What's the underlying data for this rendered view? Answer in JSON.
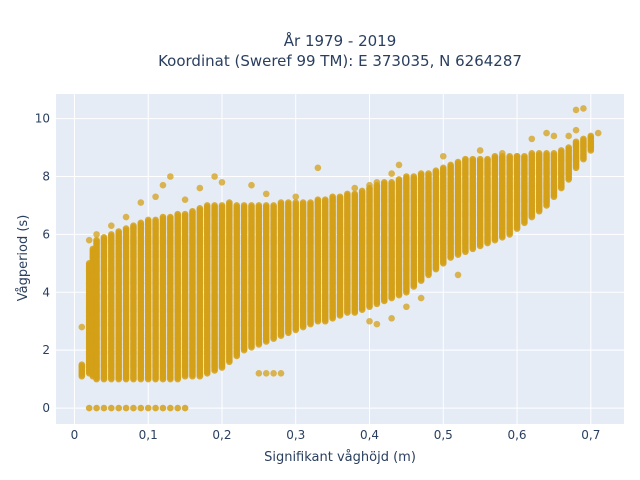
{
  "chart_data": {
    "type": "scatter",
    "title_line1": "År 1979 - 2019",
    "title_line2": "Koordinat (Sweref 99 TM): E 373035, N 6264287",
    "xlabel": "Signifikant våghöjd (m)",
    "ylabel": "Vågperiod (s)",
    "xlim": [
      -0.025,
      0.745
    ],
    "ylim": [
      -0.55,
      10.85
    ],
    "xticks": [
      0,
      0.1,
      0.2,
      0.3,
      0.4,
      0.5,
      0.6,
      0.7
    ],
    "xtick_labels": [
      "0",
      "0,1",
      "0,2",
      "0,3",
      "0,4",
      "0,5",
      "0,6",
      "0,7"
    ],
    "yticks": [
      0,
      2,
      4,
      6,
      8,
      10
    ],
    "ytick_labels": [
      "0",
      "2",
      "4",
      "6",
      "8",
      "10"
    ],
    "grid": true,
    "colors": {
      "marker": "#D4A017",
      "plot_bg": "#E5ECF6",
      "grid": "#ffffff",
      "text": "#2a3f5f"
    },
    "series": [
      {
        "bands": [
          [
            0.01,
            1.1,
            1.5
          ],
          [
            0.02,
            1.2,
            5.0
          ],
          [
            0.025,
            1.1,
            5.5
          ],
          [
            0.03,
            1.0,
            5.8
          ],
          [
            0.04,
            1.0,
            5.9
          ],
          [
            0.05,
            1.0,
            6.0
          ],
          [
            0.06,
            1.0,
            6.1
          ],
          [
            0.07,
            1.0,
            6.2
          ],
          [
            0.08,
            1.0,
            6.3
          ],
          [
            0.09,
            1.0,
            6.4
          ],
          [
            0.1,
            1.0,
            6.5
          ],
          [
            0.11,
            1.0,
            6.5
          ],
          [
            0.12,
            1.0,
            6.6
          ],
          [
            0.13,
            1.0,
            6.6
          ],
          [
            0.14,
            1.0,
            6.7
          ],
          [
            0.15,
            1.1,
            6.7
          ],
          [
            0.16,
            1.1,
            6.8
          ],
          [
            0.17,
            1.1,
            6.9
          ],
          [
            0.18,
            1.2,
            7.0
          ],
          [
            0.19,
            1.3,
            7.0
          ],
          [
            0.2,
            1.4,
            7.0
          ],
          [
            0.21,
            1.6,
            7.1
          ],
          [
            0.22,
            1.8,
            7.0
          ],
          [
            0.23,
            2.0,
            7.0
          ],
          [
            0.24,
            2.1,
            7.0
          ],
          [
            0.25,
            2.2,
            7.0
          ],
          [
            0.26,
            2.3,
            7.0
          ],
          [
            0.27,
            2.4,
            7.0
          ],
          [
            0.28,
            2.5,
            7.1
          ],
          [
            0.29,
            2.6,
            7.1
          ],
          [
            0.3,
            2.7,
            7.1
          ],
          [
            0.31,
            2.8,
            7.1
          ],
          [
            0.32,
            2.9,
            7.1
          ],
          [
            0.33,
            3.0,
            7.2
          ],
          [
            0.34,
            3.0,
            7.2
          ],
          [
            0.35,
            3.1,
            7.3
          ],
          [
            0.36,
            3.2,
            7.3
          ],
          [
            0.37,
            3.3,
            7.4
          ],
          [
            0.38,
            3.3,
            7.4
          ],
          [
            0.39,
            3.4,
            7.5
          ],
          [
            0.4,
            3.5,
            7.6
          ],
          [
            0.41,
            3.6,
            7.7
          ],
          [
            0.42,
            3.7,
            7.8
          ],
          [
            0.43,
            3.8,
            7.8
          ],
          [
            0.44,
            3.9,
            7.9
          ],
          [
            0.45,
            4.0,
            8.0
          ],
          [
            0.46,
            4.2,
            8.0
          ],
          [
            0.47,
            4.4,
            8.1
          ],
          [
            0.48,
            4.6,
            8.1
          ],
          [
            0.49,
            4.8,
            8.2
          ],
          [
            0.5,
            5.0,
            8.3
          ],
          [
            0.51,
            5.2,
            8.4
          ],
          [
            0.52,
            5.3,
            8.5
          ],
          [
            0.53,
            5.4,
            8.6
          ],
          [
            0.54,
            5.5,
            8.6
          ],
          [
            0.55,
            5.6,
            8.6
          ],
          [
            0.56,
            5.7,
            8.6
          ],
          [
            0.57,
            5.8,
            8.7
          ],
          [
            0.58,
            5.9,
            8.7
          ],
          [
            0.59,
            6.0,
            8.7
          ],
          [
            0.6,
            6.2,
            8.7
          ],
          [
            0.61,
            6.4,
            8.7
          ],
          [
            0.62,
            6.6,
            8.8
          ],
          [
            0.63,
            6.8,
            8.8
          ],
          [
            0.64,
            7.0,
            8.8
          ],
          [
            0.65,
            7.3,
            8.8
          ],
          [
            0.66,
            7.6,
            8.9
          ],
          [
            0.67,
            7.9,
            9.0
          ],
          [
            0.68,
            8.3,
            9.2
          ],
          [
            0.69,
            8.6,
            9.3
          ],
          [
            0.7,
            8.9,
            9.4
          ]
        ],
        "outliers": [
          [
            0.01,
            2.8
          ],
          [
            0.02,
            5.8
          ],
          [
            0.03,
            6.0
          ],
          [
            0.05,
            6.3
          ],
          [
            0.07,
            6.6
          ],
          [
            0.09,
            7.1
          ],
          [
            0.11,
            7.3
          ],
          [
            0.12,
            7.7
          ],
          [
            0.13,
            8.0
          ],
          [
            0.15,
            7.2
          ],
          [
            0.17,
            7.6
          ],
          [
            0.19,
            8.0
          ],
          [
            0.2,
            7.8
          ],
          [
            0.24,
            7.7
          ],
          [
            0.26,
            7.4
          ],
          [
            0.3,
            7.3
          ],
          [
            0.33,
            8.3
          ],
          [
            0.38,
            7.6
          ],
          [
            0.4,
            7.7
          ],
          [
            0.41,
            7.8
          ],
          [
            0.43,
            8.1
          ],
          [
            0.44,
            8.4
          ],
          [
            0.5,
            8.7
          ],
          [
            0.55,
            8.9
          ],
          [
            0.58,
            8.8
          ],
          [
            0.6,
            8.7
          ],
          [
            0.62,
            9.3
          ],
          [
            0.64,
            9.5
          ],
          [
            0.65,
            9.4
          ],
          [
            0.67,
            9.4
          ],
          [
            0.68,
            10.3
          ],
          [
            0.69,
            10.35
          ],
          [
            0.68,
            9.6
          ],
          [
            0.71,
            9.5
          ],
          [
            0.25,
            1.2
          ],
          [
            0.26,
            1.2
          ],
          [
            0.27,
            1.2
          ],
          [
            0.28,
            1.2
          ],
          [
            0.4,
            3.0
          ],
          [
            0.41,
            2.9
          ],
          [
            0.43,
            3.1
          ],
          [
            0.45,
            3.5
          ],
          [
            0.47,
            3.8
          ],
          [
            0.52,
            4.6
          ]
        ],
        "zero_line": {
          "x_from": 0.02,
          "x_to": 0.15,
          "y": 0
        }
      }
    ]
  }
}
